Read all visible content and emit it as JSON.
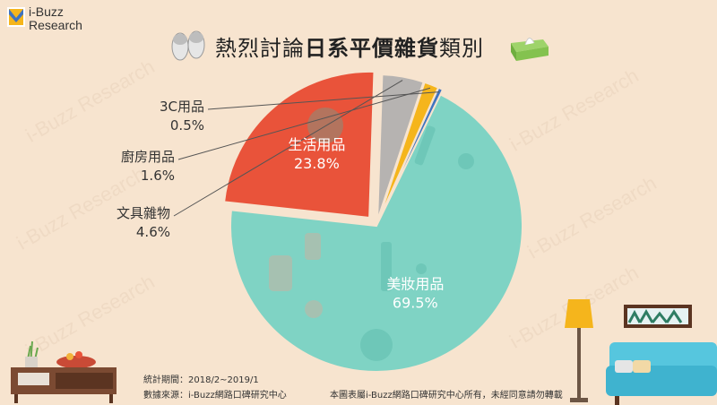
{
  "logo": {
    "line1": "i-Buzz",
    "line2": "Research"
  },
  "watermark_text": "i-Buzz Research",
  "title": {
    "part1": "熱烈討論",
    "part2": "日系平價雜貨",
    "part3": "類別"
  },
  "footnote": {
    "period": "統計期間：2018/2~2019/1",
    "source": "數據來源：i-Buzz網路口碑研究中心",
    "rights": "本圖表屬i-Buzz網路口碑研究中心所有，未經同意請勿轉載"
  },
  "colors": {
    "background": "#f7e4cf",
    "cosmetics": "#7fd3c4",
    "daily": "#e9533a",
    "stationery": "#b6b3b1",
    "kitchen": "#f5b51c",
    "electronics": "#3f73c0"
  },
  "chart_data": {
    "type": "pie",
    "title": "熱烈討論日系平價雜貨類別",
    "slices": [
      {
        "label": "美妝用品",
        "value": 69.5,
        "display": "69.5%",
        "color": "#7fd3c4"
      },
      {
        "label": "生活用品",
        "value": 23.8,
        "display": "23.8%",
        "color": "#e9533a"
      },
      {
        "label": "文具雜物",
        "value": 4.6,
        "display": "4.6%",
        "color": "#b6b3b1"
      },
      {
        "label": "廚房用品",
        "value": 1.6,
        "display": "1.6%",
        "color": "#f5b51c"
      },
      {
        "label": "3C用品",
        "value": 0.5,
        "display": "0.5%",
        "color": "#3f73c0"
      }
    ]
  }
}
